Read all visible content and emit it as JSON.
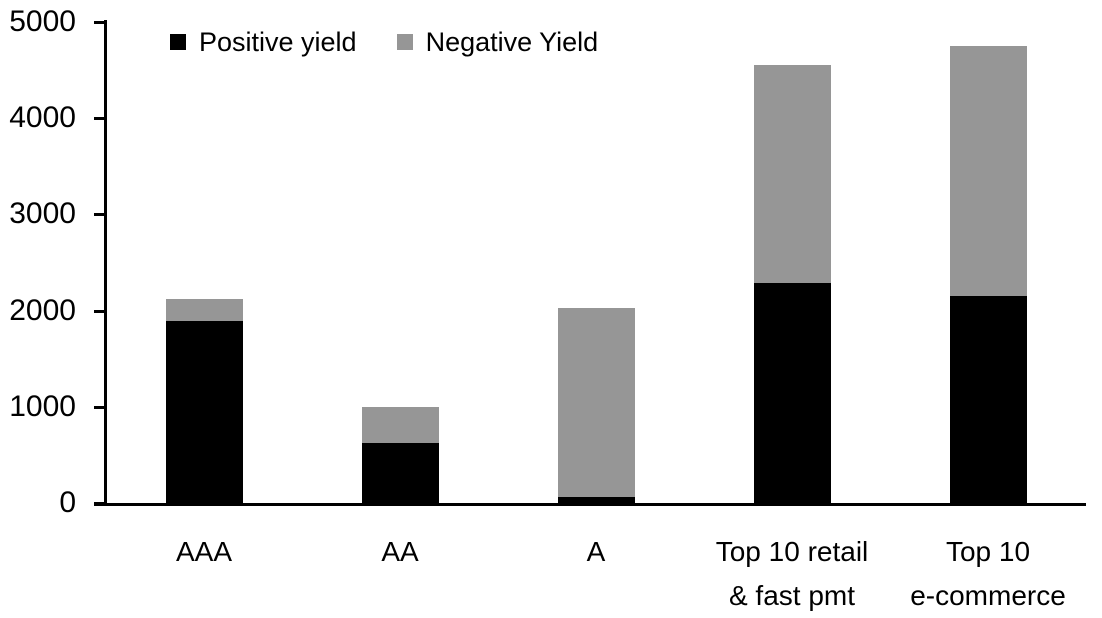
{
  "chart_data": {
    "type": "bar",
    "stacked": true,
    "title": "",
    "xlabel": "",
    "ylabel": "",
    "categories": [
      "AAA",
      "AA",
      "A",
      "Top 10 retail & fast pmt",
      "Top 10 e-commerce"
    ],
    "category_lines": [
      [
        "AAA"
      ],
      [
        "AA"
      ],
      [
        "A"
      ],
      [
        "Top 10 retail",
        "& fast pmt"
      ],
      [
        "Top 10",
        "e-commerce"
      ]
    ],
    "series": [
      {
        "name": "Positive yield",
        "color": "#000000",
        "values": [
          1890,
          620,
          60,
          2290,
          2150
        ]
      },
      {
        "name": "Negative Yield",
        "color": "#969696",
        "values": [
          230,
          380,
          1970,
          2260,
          2600
        ]
      }
    ],
    "totals": [
      2120,
      1000,
      2030,
      4550,
      4750
    ],
    "ylim": [
      0,
      5000
    ],
    "yticks": [
      0,
      1000,
      2000,
      3000,
      4000,
      5000
    ],
    "grid": false,
    "legend_position": "top-left",
    "axis_color": "#000000",
    "background": "#ffffff"
  }
}
